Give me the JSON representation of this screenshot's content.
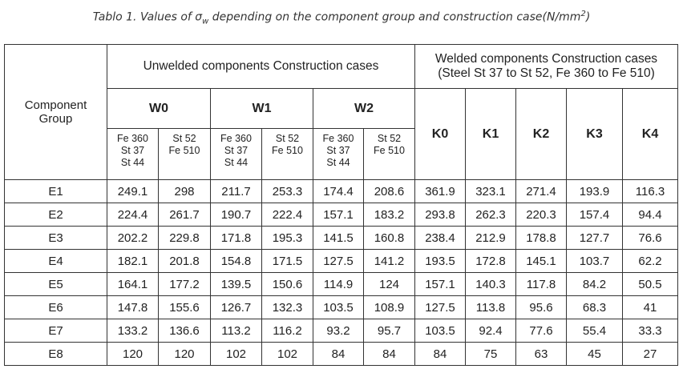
{
  "caption": {
    "prefix": "Tablo 1. Values of ",
    "symbol": "σ",
    "symbol_sub": "w",
    "middle": " depending on the component group and construction case(N/mm",
    "unit_sup": "2",
    "suffix": ")"
  },
  "header": {
    "row_header": "Component Group",
    "unwelded": "Unwelded components Construction cases",
    "welded": [
      "Welded components Construction cases",
      "(Steel St 37 to St 52, Fe 360 to Fe 510)"
    ],
    "unwelded_groups": [
      "W0",
      "W1",
      "W2"
    ],
    "welded_groups": [
      "K0",
      "K1",
      "K2",
      "K3",
      "K4"
    ],
    "sub_headers": [
      [
        "Fe 360",
        "St 37",
        "St 44"
      ],
      [
        "St 52",
        "Fe 510"
      ],
      [
        "Fe 360",
        "St 37",
        "St 44"
      ],
      [
        "St 52",
        "Fe 510"
      ],
      [
        "Fe 360",
        "St 37",
        "St 44"
      ],
      [
        "St 52",
        "Fe 510"
      ]
    ]
  },
  "table": {
    "rows": [
      [
        "E1",
        249.1,
        298,
        211.7,
        253.3,
        174.4,
        208.6,
        361.9,
        323.1,
        271.4,
        193.9,
        116.3
      ],
      [
        "E2",
        224.4,
        261.7,
        190.7,
        222.4,
        157.1,
        183.2,
        293.8,
        262.3,
        220.3,
        157.4,
        94.4
      ],
      [
        "E3",
        202.2,
        229.8,
        171.8,
        195.3,
        141.5,
        160.8,
        238.4,
        212.9,
        178.8,
        127.7,
        76.6
      ],
      [
        "E4",
        182.1,
        201.8,
        154.8,
        171.5,
        127.5,
        141.2,
        193.5,
        172.8,
        145.1,
        103.7,
        62.2
      ],
      [
        "E5",
        164.1,
        177.2,
        139.5,
        150.6,
        114.9,
        124,
        157.1,
        140.3,
        117.8,
        84.2,
        50.5
      ],
      [
        "E6",
        147.8,
        155.6,
        126.7,
        132.3,
        103.5,
        108.9,
        127.5,
        113.8,
        95.6,
        68.3,
        41
      ],
      [
        "E7",
        133.2,
        136.6,
        113.2,
        116.2,
        93.2,
        95.7,
        103.5,
        92.4,
        77.6,
        55.4,
        33.3
      ],
      [
        "E8",
        120,
        120,
        102,
        102,
        84,
        84,
        84,
        75,
        63,
        45,
        27
      ]
    ]
  }
}
